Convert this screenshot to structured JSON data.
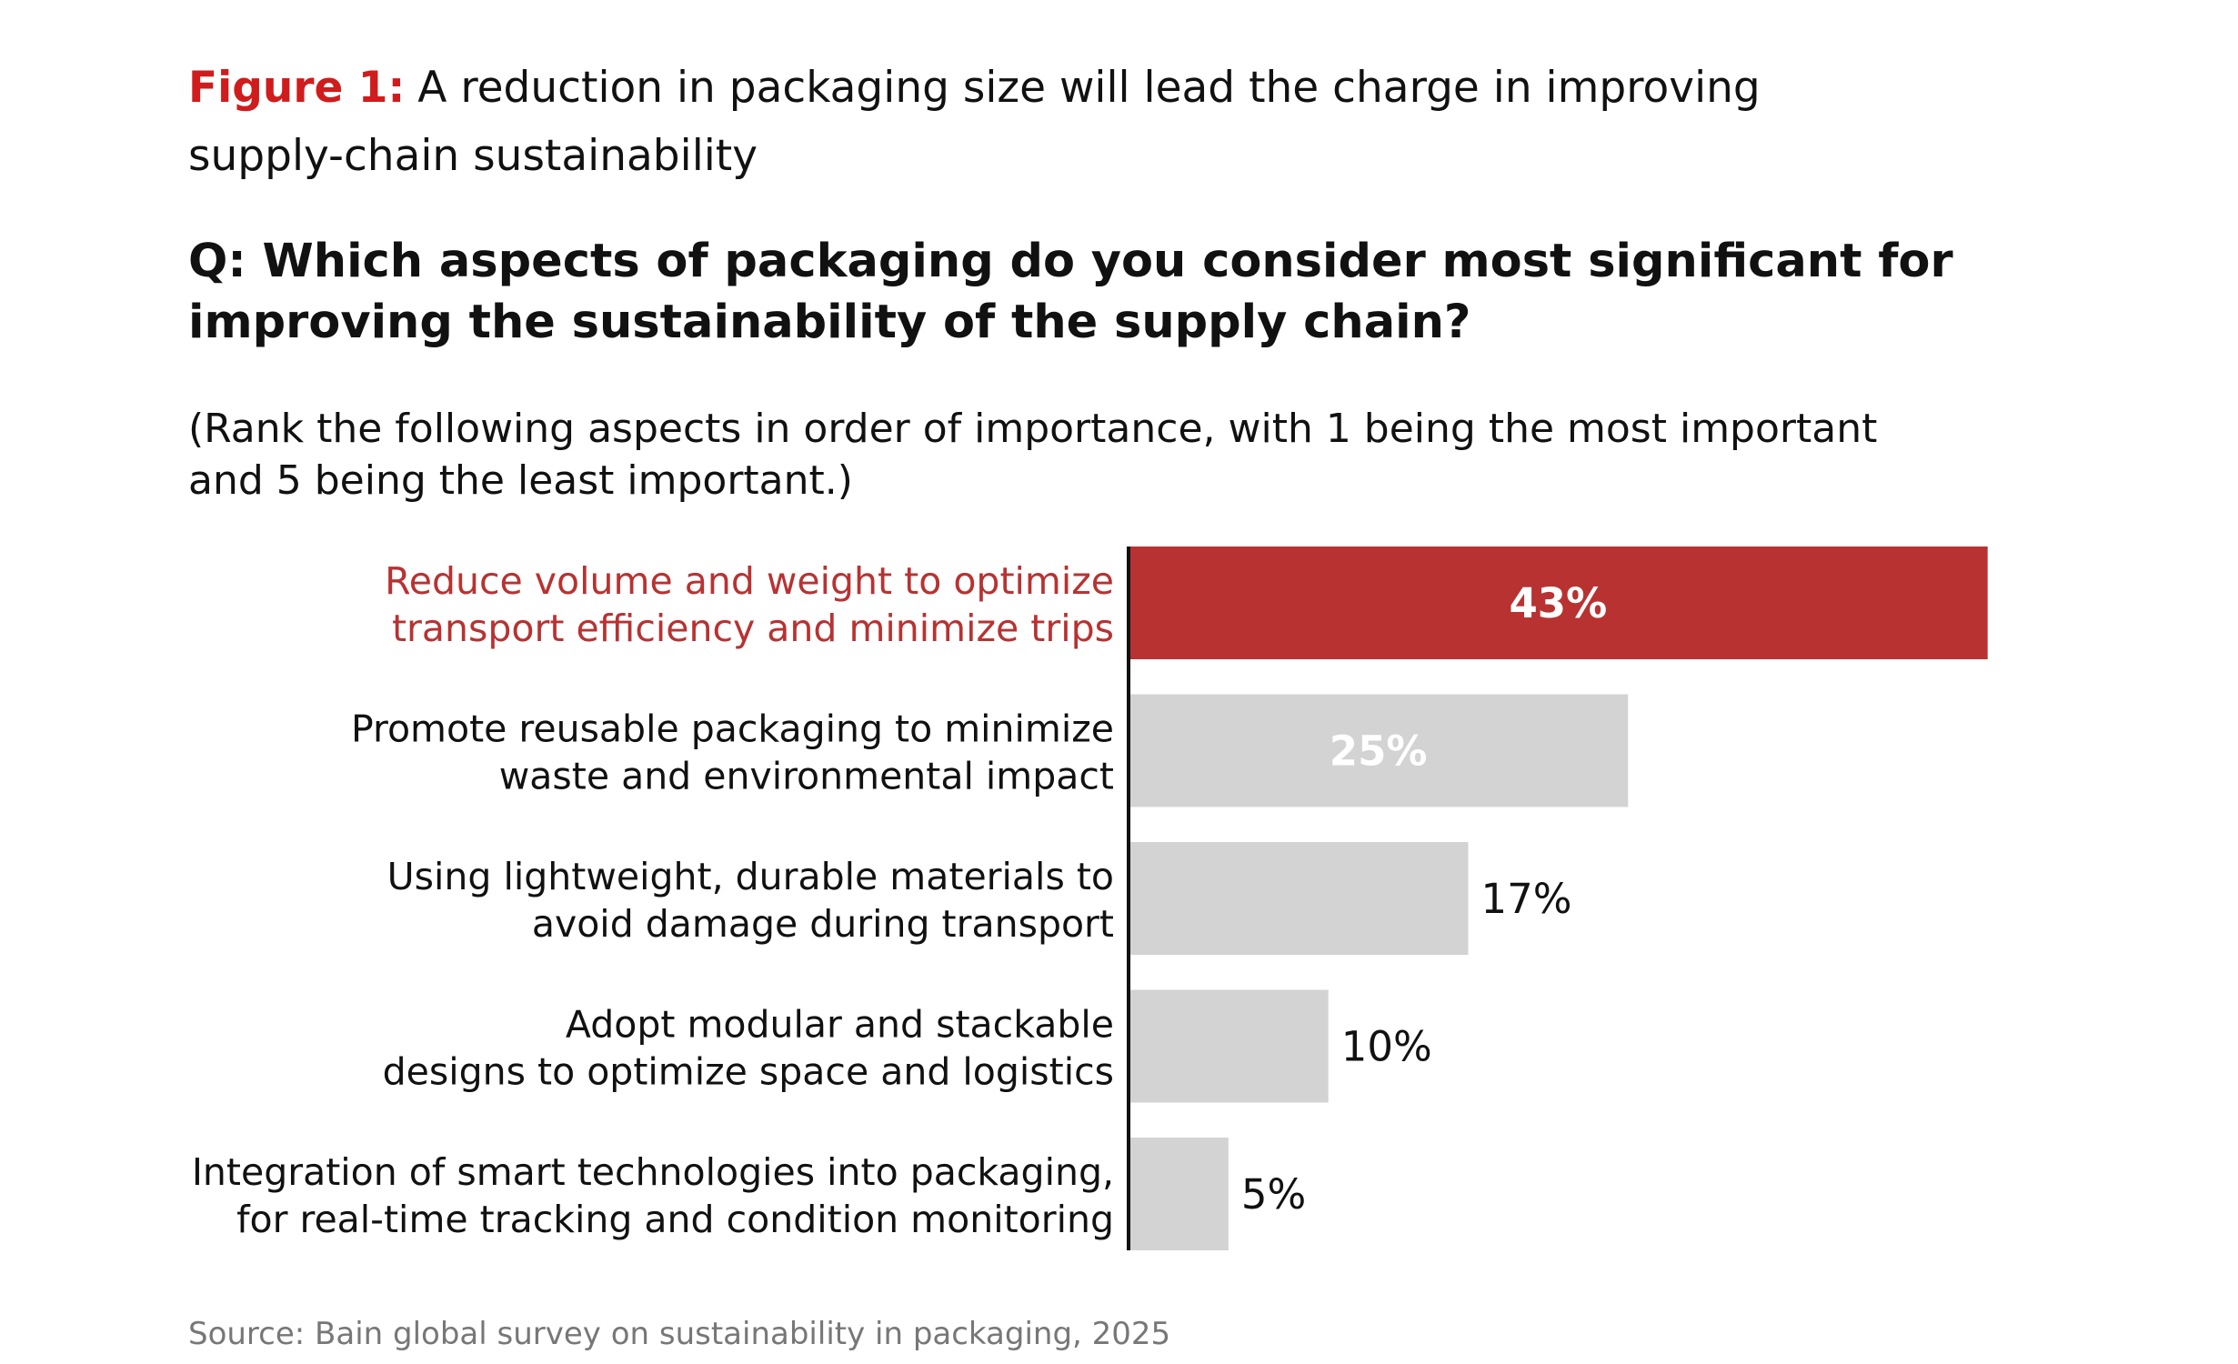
{
  "chart_data": {
    "type": "hbar",
    "figure_label": "Figure 1:",
    "title": [
      "A reduction in packaging size will lead the charge in improving",
      "supply-chain sustainability"
    ],
    "question": [
      "Q: Which aspects of packaging do you consider most significant for",
      "improving the sustainability of the supply chain?"
    ],
    "subtitle": [
      "(Rank the following aspects in order of importance, with 1 being the most important",
      "and 5 being the least important.)"
    ],
    "categories": [
      [
        "Reduce volume and weight to optimize",
        "transport efficiency and minimize trips"
      ],
      [
        "Promote reusable packaging to minimize",
        "waste and environmental impact"
      ],
      [
        "Using lightweight, durable materials to",
        "avoid damage during transport"
      ],
      [
        "Adopt modular and stackable",
        "designs to optimize space and logistics"
      ],
      [
        "Integration of smart technologies into packaging,",
        "for real-time tracking and condition monitoring"
      ]
    ],
    "values": [
      43,
      25,
      17,
      10,
      5
    ],
    "value_labels": [
      "43%",
      "25%",
      "17%",
      "10%",
      "5%"
    ],
    "colors": [
      "#b83232",
      "#d3d3d3",
      "#d3d3d3",
      "#d3d3d3",
      "#d3d3d3"
    ],
    "label_colors": [
      "#b83232",
      "#111111",
      "#111111",
      "#111111",
      "#111111"
    ],
    "source": "Source: Bain global survey on sustainability in packaging, 2025"
  }
}
